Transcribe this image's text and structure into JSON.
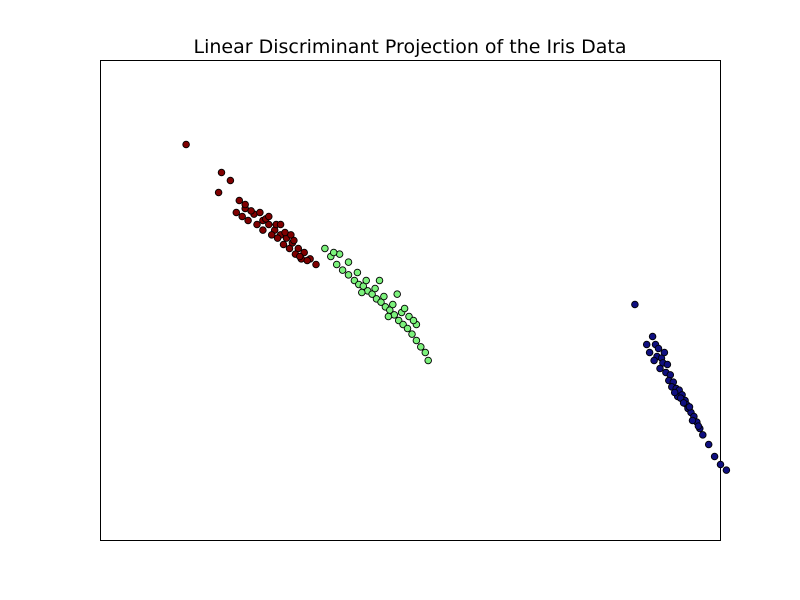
{
  "chart_data": {
    "type": "scatter",
    "title": "Linear Discriminant Projection of the Iris Data",
    "xlabel": "",
    "ylabel": "",
    "xlim": [
      -10.5,
      10.5
    ],
    "ylim": [
      -3.0,
      3.0
    ],
    "grid": false,
    "axis_ticks": false,
    "legend": "none",
    "series": [
      {
        "color": "#0f0f80",
        "points": [
          [
            7.6,
            -0.05
          ],
          [
            8.0,
            -0.55
          ],
          [
            8.2,
            -0.45
          ],
          [
            8.1,
            -0.65
          ],
          [
            8.3,
            -0.55
          ],
          [
            8.4,
            -0.6
          ],
          [
            8.35,
            -0.7
          ],
          [
            8.5,
            -0.72
          ],
          [
            8.6,
            -0.65
          ],
          [
            8.55,
            -0.78
          ],
          [
            8.7,
            -0.8
          ],
          [
            8.45,
            -0.85
          ],
          [
            8.65,
            -0.9
          ],
          [
            8.8,
            -0.93
          ],
          [
            8.75,
            -1.0
          ],
          [
            8.9,
            -1.02
          ],
          [
            8.85,
            -1.08
          ],
          [
            9.0,
            -1.1
          ],
          [
            9.1,
            -1.12
          ],
          [
            9.05,
            -1.2
          ],
          [
            9.2,
            -1.18
          ],
          [
            9.3,
            -1.25
          ],
          [
            9.35,
            -1.3
          ],
          [
            9.15,
            -1.22
          ],
          [
            9.4,
            -1.35
          ],
          [
            9.5,
            -1.4
          ],
          [
            9.45,
            -1.33
          ],
          [
            9.6,
            -1.45
          ],
          [
            9.7,
            -1.52
          ],
          [
            9.8,
            -1.6
          ],
          [
            9.9,
            -1.68
          ],
          [
            10.1,
            -1.8
          ],
          [
            10.3,
            -1.95
          ],
          [
            10.5,
            -2.05
          ],
          [
            10.7,
            -2.12
          ],
          [
            8.25,
            -0.75
          ],
          [
            8.95,
            -1.15
          ],
          [
            9.25,
            -1.28
          ],
          [
            9.55,
            -1.5
          ],
          [
            9.75,
            -1.57
          ]
        ]
      },
      {
        "color": "#7cf27c",
        "points": [
          [
            -2.9,
            0.65
          ],
          [
            -2.7,
            0.55
          ],
          [
            -2.5,
            0.45
          ],
          [
            -2.3,
            0.38
          ],
          [
            -2.1,
            0.32
          ],
          [
            -1.9,
            0.25
          ],
          [
            -1.75,
            0.2
          ],
          [
            -1.6,
            0.18
          ],
          [
            -1.45,
            0.12
          ],
          [
            -1.3,
            0.08
          ],
          [
            -1.15,
            0.02
          ],
          [
            -1.0,
            -0.02
          ],
          [
            -0.85,
            -0.08
          ],
          [
            -0.7,
            -0.12
          ],
          [
            -0.55,
            -0.18
          ],
          [
            -0.4,
            -0.25
          ],
          [
            -0.25,
            -0.3
          ],
          [
            -0.1,
            -0.35
          ],
          [
            0.05,
            -0.42
          ],
          [
            0.2,
            -0.5
          ],
          [
            0.35,
            -0.58
          ],
          [
            0.5,
            -0.65
          ],
          [
            0.6,
            -0.75
          ],
          [
            0.2,
            -0.3
          ],
          [
            -0.05,
            -0.2
          ],
          [
            -0.3,
            -0.15
          ],
          [
            -0.6,
            -0.05
          ],
          [
            -0.9,
            0.05
          ],
          [
            -1.2,
            0.15
          ],
          [
            -1.5,
            0.25
          ],
          [
            -1.8,
            0.35
          ],
          [
            -2.1,
            0.48
          ],
          [
            -2.4,
            0.58
          ],
          [
            -2.6,
            0.6
          ],
          [
            -0.45,
            0.08
          ],
          [
            -0.75,
            -0.2
          ],
          [
            -1.05,
            0.25
          ],
          [
            -0.2,
            -0.1
          ],
          [
            0.1,
            -0.25
          ],
          [
            -1.65,
            0.1
          ]
        ]
      },
      {
        "color": "#800000",
        "points": [
          [
            -7.6,
            1.95
          ],
          [
            -6.4,
            1.6
          ],
          [
            -6.1,
            1.5
          ],
          [
            -6.5,
            1.35
          ],
          [
            -5.8,
            1.25
          ],
          [
            -5.6,
            1.15
          ],
          [
            -5.3,
            1.08
          ],
          [
            -5.0,
            1.0
          ],
          [
            -4.8,
            0.95
          ],
          [
            -4.6,
            0.88
          ],
          [
            -4.4,
            0.82
          ],
          [
            -4.2,
            0.78
          ],
          [
            -4.0,
            0.72
          ],
          [
            -3.8,
            0.65
          ],
          [
            -3.6,
            0.6
          ],
          [
            -3.4,
            0.52
          ],
          [
            -3.2,
            0.45
          ],
          [
            -5.9,
            1.1
          ],
          [
            -5.7,
            1.05
          ],
          [
            -5.5,
            1.0
          ],
          [
            -5.2,
            0.95
          ],
          [
            -5.0,
            0.88
          ],
          [
            -4.7,
            0.82
          ],
          [
            -4.5,
            0.78
          ],
          [
            -4.3,
            0.7
          ],
          [
            -4.1,
            0.65
          ],
          [
            -3.9,
            0.58
          ],
          [
            -3.7,
            0.52
          ],
          [
            -5.4,
            1.12
          ],
          [
            -4.9,
            1.02
          ],
          [
            -4.55,
            0.95
          ],
          [
            -4.25,
            0.85
          ],
          [
            -3.95,
            0.75
          ],
          [
            -3.75,
            0.55
          ],
          [
            -5.6,
            1.2
          ],
          [
            -5.1,
            1.1
          ],
          [
            -4.8,
            1.05
          ],
          [
            -4.4,
            0.95
          ],
          [
            -4.05,
            0.82
          ],
          [
            -3.5,
            0.5
          ]
        ]
      }
    ]
  }
}
